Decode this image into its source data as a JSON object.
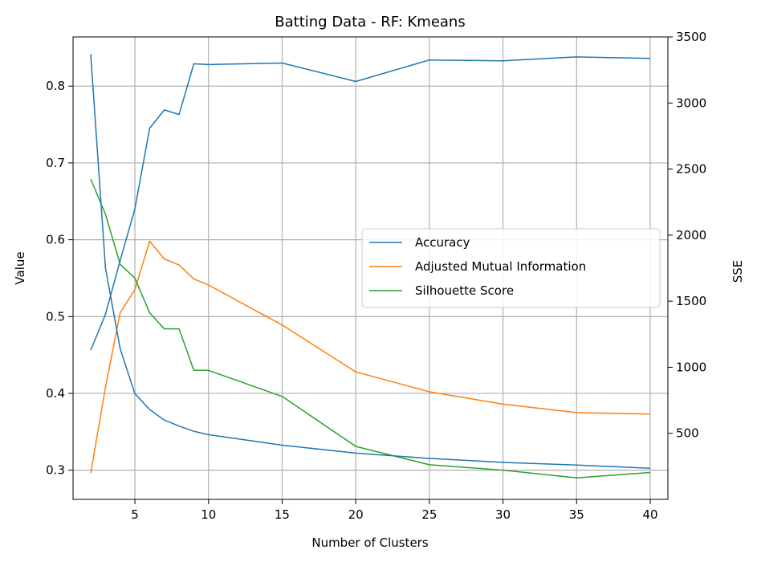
{
  "chart_data": {
    "type": "line",
    "title": "Batting Data - RF: Kmeans",
    "xlabel": "Number of Clusters",
    "ylabel": "Value",
    "y2label": "SSE",
    "x": [
      2,
      3,
      4,
      5,
      6,
      7,
      8,
      9,
      10,
      15,
      20,
      25,
      30,
      35,
      40
    ],
    "xlim": [
      0.8,
      41.2
    ],
    "ylim": [
      0.262,
      0.864
    ],
    "y2lim": [
      0,
      3500
    ],
    "x_ticks": [
      5,
      10,
      15,
      20,
      25,
      30,
      35,
      40
    ],
    "y_ticks": [
      0.3,
      0.4,
      0.5,
      0.6,
      0.7,
      0.8
    ],
    "y2_ticks": [
      500,
      1000,
      1500,
      2000,
      2500,
      3000,
      3500
    ],
    "grid": true,
    "legend_position": "center-right",
    "series": [
      {
        "name": "Accuracy",
        "axis": "left",
        "color": "#1f77b4",
        "values": [
          0.456,
          0.503,
          0.573,
          0.64,
          0.745,
          0.769,
          0.763,
          0.829,
          0.828,
          0.83,
          0.806,
          0.834,
          0.833,
          0.838,
          0.836
        ]
      },
      {
        "name": "Adjusted Mutual Information",
        "axis": "left",
        "color": "#ff7f0e",
        "values": [
          0.296,
          0.408,
          0.505,
          0.535,
          0.598,
          0.575,
          0.567,
          0.549,
          0.541,
          0.489,
          0.428,
          0.402,
          0.386,
          0.375,
          0.373
        ]
      },
      {
        "name": "Silhouette Score",
        "axis": "left",
        "color": "#2ca02c",
        "values": [
          0.679,
          0.633,
          0.568,
          0.55,
          0.505,
          0.484,
          0.484,
          0.43,
          0.43,
          0.396,
          0.331,
          0.307,
          0.3,
          0.29,
          0.297
        ]
      },
      {
        "axis": "right",
        "color": "#1f77b4",
        "values": [
          3370,
          1750,
          1140,
          800,
          680,
          600,
          555,
          515,
          490,
          410,
          350,
          310,
          280,
          260,
          235
        ]
      }
    ]
  }
}
